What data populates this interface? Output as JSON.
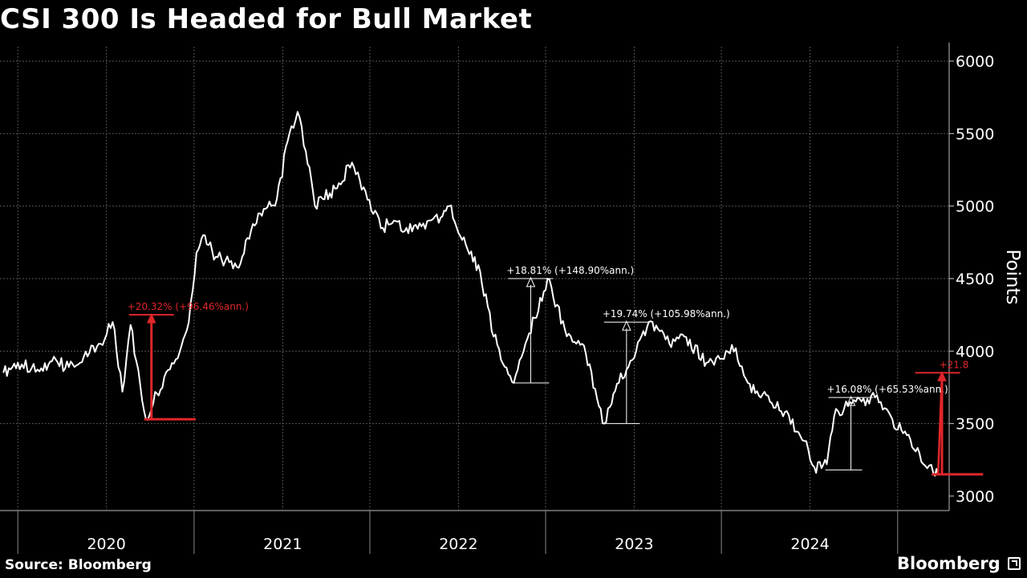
{
  "chart_data": {
    "type": "line",
    "title": "CSI 300 Is Headed for Bull Market",
    "ylabel": "Points",
    "ylim": [
      2900,
      6100
    ],
    "y_ticks": [
      3000,
      3500,
      4000,
      4500,
      5000,
      5500,
      6000
    ],
    "x_tick_labels": [
      "2020",
      "2021",
      "2022",
      "2023",
      "2024"
    ],
    "grid": true,
    "series": [
      {
        "x": [
          "2019-06-01",
          "2019-07-01",
          "2019-08-15",
          "2019-09-10",
          "2019-10-15",
          "2019-11-15",
          "2019-12-20",
          "2020-01-14",
          "2020-02-03",
          "2020-02-20",
          "2020-03-23",
          "2020-04-30",
          "2020-05-28",
          "2020-06-20",
          "2020-07-06",
          "2020-07-20",
          "2020-08-15",
          "2020-09-28",
          "2020-10-20",
          "2020-11-15",
          "2020-12-20",
          "2021-01-15",
          "2021-02-01",
          "2021-02-18",
          "2021-03-09",
          "2021-03-25",
          "2021-04-20",
          "2021-05-25",
          "2021-06-10",
          "2021-07-28",
          "2021-08-20",
          "2021-09-15",
          "2021-10-20",
          "2021-11-25",
          "2021-12-13",
          "2022-01-20",
          "2022-02-15",
          "2022-03-15",
          "2022-04-26",
          "2022-05-20",
          "2022-07-05",
          "2022-08-10",
          "2022-09-15",
          "2022-10-31",
          "2022-11-30",
          "2023-01-05",
          "2023-01-31",
          "2023-03-15",
          "2023-04-15",
          "2023-05-31",
          "2023-06-20",
          "2023-07-31",
          "2023-08-25",
          "2023-10-10",
          "2023-11-10",
          "2023-12-20",
          "2024-01-10",
          "2024-02-05",
          "2024-02-20",
          "2024-03-20",
          "2024-05-15",
          "2024-06-20",
          "2024-07-20",
          "2024-08-15",
          "2024-09-13",
          "2024-09-23",
          "2024-10-01"
        ],
        "values": [
          3850,
          3920,
          3860,
          3930,
          3890,
          3960,
          4050,
          4200,
          3720,
          4180,
          3530,
          3820,
          3950,
          4200,
          4680,
          4800,
          4650,
          4580,
          4780,
          4950,
          5050,
          5500,
          5650,
          5380,
          5000,
          5050,
          5120,
          5300,
          5180,
          4850,
          4900,
          4850,
          4880,
          4920,
          5000,
          4700,
          4550,
          4100,
          3780,
          4050,
          4500,
          4150,
          4050,
          3500,
          3780,
          4000,
          4200,
          4050,
          4100,
          3920,
          3950,
          4020,
          3780,
          3650,
          3580,
          3380,
          3200,
          3220,
          3550,
          3620,
          3680,
          3530,
          3420,
          3300,
          3160,
          3150,
          3850
        ]
      }
    ],
    "annotations": [
      {
        "label": "+20.32% (+96.46%ann.)",
        "from_date": "2020-03-23",
        "to_date": "2020-04-15",
        "from_value": 3530,
        "to_value": 4250,
        "color": "#e0262b"
      },
      {
        "label": "+18.81% (+148.90%ann.)",
        "from_date": "2022-04-26",
        "to_date": "2022-07-05",
        "from_value": 3780,
        "to_value": 4500,
        "color": "#ffffff"
      },
      {
        "label": "+19.74% (+105.98%ann.)",
        "from_date": "2022-10-31",
        "to_date": "2023-01-31",
        "from_value": 3500,
        "to_value": 4200,
        "color": "#ffffff"
      },
      {
        "label": "+16.08% (+65.53%ann.)",
        "from_date": "2024-02-05",
        "to_date": "2024-05-15",
        "from_value": 3180,
        "to_value": 3680,
        "color": "#ffffff"
      },
      {
        "label": "+21.8",
        "from_date": "2024-09-13",
        "to_date": "2024-10-01",
        "from_value": 3150,
        "to_value": 3850,
        "color": "#e0262b"
      }
    ]
  },
  "footer": {
    "source": "Source: Bloomberg",
    "brand": "Bloomberg"
  },
  "colors": {
    "background": "#000000",
    "line": "#ffffff",
    "grid": "#555555",
    "highlight": "#e0262b"
  }
}
